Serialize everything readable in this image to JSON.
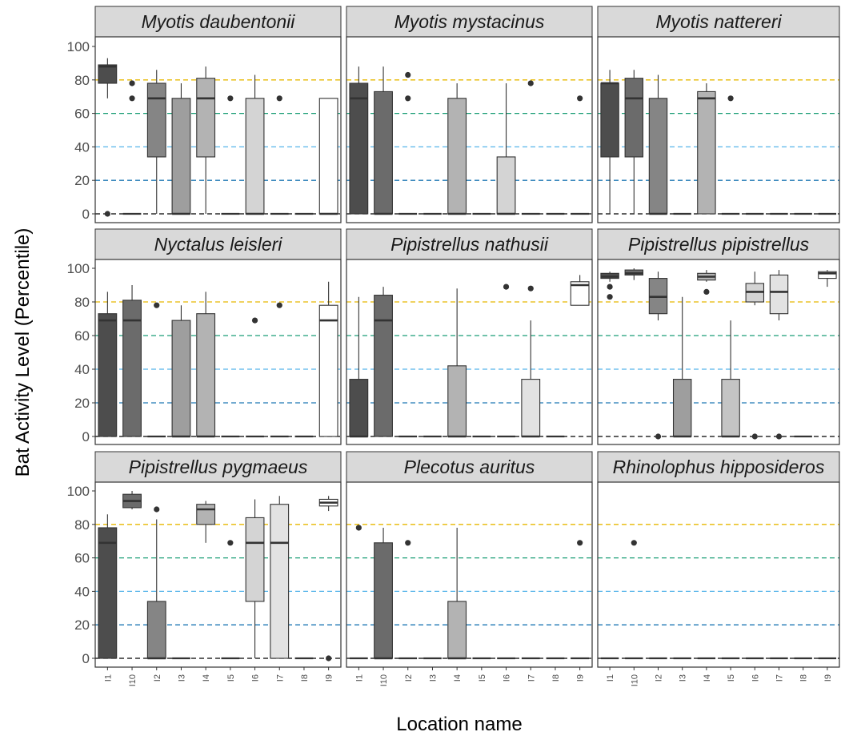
{
  "chart_data": {
    "type": "box",
    "facets_layout": "3x3 grid",
    "xlabel": "Location name",
    "ylabel": "Bat Activity Level (Percentile)",
    "ylim": [
      0,
      100
    ],
    "y_ticks": [
      0,
      20,
      40,
      60,
      80,
      100
    ],
    "categories": [
      "I1",
      "I10",
      "I2",
      "I3",
      "I4",
      "I5",
      "I6",
      "I7",
      "I8",
      "I9"
    ],
    "fill_colors": [
      "#4d4d4d",
      "#6b6b6b",
      "#858585",
      "#9e9e9e",
      "#b3b3b3",
      "#c4c4c4",
      "#d4d4d4",
      "#e2e2e2",
      "#efefef",
      "#ffffff"
    ],
    "reference_lines": [
      {
        "y": 80,
        "color": "#E7B800"
      },
      {
        "y": 60,
        "color": "#1B9E77"
      },
      {
        "y": 40,
        "color": "#56B4E9"
      },
      {
        "y": 20,
        "color": "#1F78B4"
      },
      {
        "y": 0,
        "color": "#000000"
      }
    ],
    "grid": false,
    "legend": "none",
    "facets": [
      {
        "title": "Myotis daubentonii",
        "boxes": [
          {
            "lw": 69,
            "q1": 78,
            "med": 88,
            "q3": 89,
            "uw": 93,
            "out": [
              0
            ]
          },
          {
            "lw": 0,
            "q1": 0,
            "med": 0,
            "q3": 0,
            "uw": 0,
            "out": [
              69,
              78
            ]
          },
          {
            "lw": 0,
            "q1": 34,
            "med": 69,
            "q3": 78,
            "uw": 86,
            "out": []
          },
          {
            "lw": 0,
            "q1": 0,
            "med": 0,
            "q3": 69,
            "uw": 78,
            "out": []
          },
          {
            "lw": 0,
            "q1": 34,
            "med": 69,
            "q3": 81,
            "uw": 88,
            "out": []
          },
          {
            "lw": 0,
            "q1": 0,
            "med": 0,
            "q3": 0,
            "uw": 0,
            "out": [
              69
            ]
          },
          {
            "lw": 0,
            "q1": 0,
            "med": 0,
            "q3": 69,
            "uw": 83,
            "out": []
          },
          {
            "lw": 0,
            "q1": 0,
            "med": 0,
            "q3": 0,
            "uw": 0,
            "out": [
              69
            ]
          },
          {
            "lw": 0,
            "q1": 0,
            "med": 0,
            "q3": 0,
            "uw": 0,
            "out": []
          },
          {
            "lw": 0,
            "q1": 0,
            "med": 0,
            "q3": 69,
            "uw": 69,
            "out": []
          }
        ]
      },
      {
        "title": "Myotis mystacinus",
        "boxes": [
          {
            "lw": 0,
            "q1": 0,
            "med": 69,
            "q3": 78,
            "uw": 88,
            "out": []
          },
          {
            "lw": 0,
            "q1": 0,
            "med": 0,
            "q3": 73,
            "uw": 88,
            "out": []
          },
          {
            "lw": 0,
            "q1": 0,
            "med": 0,
            "q3": 0,
            "uw": 0,
            "out": [
              69,
              83
            ]
          },
          {
            "lw": 0,
            "q1": 0,
            "med": 0,
            "q3": 0,
            "uw": 0,
            "out": []
          },
          {
            "lw": 0,
            "q1": 0,
            "med": 0,
            "q3": 69,
            "uw": 78,
            "out": []
          },
          {
            "lw": 0,
            "q1": 0,
            "med": 0,
            "q3": 0,
            "uw": 0,
            "out": []
          },
          {
            "lw": 0,
            "q1": 0,
            "med": 0,
            "q3": 34,
            "uw": 78,
            "out": []
          },
          {
            "lw": 0,
            "q1": 0,
            "med": 0,
            "q3": 0,
            "uw": 0,
            "out": [
              78
            ]
          },
          {
            "lw": 0,
            "q1": 0,
            "med": 0,
            "q3": 0,
            "uw": 0,
            "out": []
          },
          {
            "lw": 0,
            "q1": 0,
            "med": 0,
            "q3": 0,
            "uw": 0,
            "out": [
              69
            ]
          }
        ]
      },
      {
        "title": "Myotis nattereri",
        "boxes": [
          {
            "lw": 0,
            "q1": 34,
            "med": 78,
            "q3": 78,
            "uw": 86,
            "out": []
          },
          {
            "lw": 0,
            "q1": 34,
            "med": 69,
            "q3": 81,
            "uw": 86,
            "out": []
          },
          {
            "lw": 0,
            "q1": 0,
            "med": 0,
            "q3": 69,
            "uw": 83,
            "out": []
          },
          {
            "lw": 0,
            "q1": 0,
            "med": 0,
            "q3": 0,
            "uw": 0,
            "out": []
          },
          {
            "lw": 0,
            "q1": 0,
            "med": 69,
            "q3": 73,
            "uw": 78,
            "out": []
          },
          {
            "lw": 0,
            "q1": 0,
            "med": 0,
            "q3": 0,
            "uw": 0,
            "out": [
              69
            ]
          },
          {
            "lw": 0,
            "q1": 0,
            "med": 0,
            "q3": 0,
            "uw": 0,
            "out": []
          },
          {
            "lw": 0,
            "q1": 0,
            "med": 0,
            "q3": 0,
            "uw": 0,
            "out": []
          },
          {
            "lw": 0,
            "q1": 0,
            "med": 0,
            "q3": 0,
            "uw": 0,
            "out": []
          },
          {
            "lw": 0,
            "q1": 0,
            "med": 0,
            "q3": 0,
            "uw": 0,
            "out": []
          }
        ]
      },
      {
        "title": "Nyctalus leisleri",
        "boxes": [
          {
            "lw": 0,
            "q1": 0,
            "med": 69,
            "q3": 73,
            "uw": 86,
            "out": []
          },
          {
            "lw": 0,
            "q1": 0,
            "med": 69,
            "q3": 81,
            "uw": 90,
            "out": []
          },
          {
            "lw": 0,
            "q1": 0,
            "med": 0,
            "q3": 0,
            "uw": 0,
            "out": [
              78
            ]
          },
          {
            "lw": 0,
            "q1": 0,
            "med": 0,
            "q3": 69,
            "uw": 78,
            "out": []
          },
          {
            "lw": 0,
            "q1": 0,
            "med": 0,
            "q3": 73,
            "uw": 86,
            "out": []
          },
          {
            "lw": 0,
            "q1": 0,
            "med": 0,
            "q3": 0,
            "uw": 0,
            "out": []
          },
          {
            "lw": 0,
            "q1": 0,
            "med": 0,
            "q3": 0,
            "uw": 0,
            "out": [
              69
            ]
          },
          {
            "lw": 0,
            "q1": 0,
            "med": 0,
            "q3": 0,
            "uw": 0,
            "out": [
              78
            ]
          },
          {
            "lw": 0,
            "q1": 0,
            "med": 0,
            "q3": 0,
            "uw": 0,
            "out": []
          },
          {
            "lw": 0,
            "q1": 0,
            "med": 69,
            "q3": 78,
            "uw": 92,
            "out": []
          }
        ]
      },
      {
        "title": "Pipistrellus nathusii",
        "boxes": [
          {
            "lw": 0,
            "q1": 0,
            "med": 0,
            "q3": 34,
            "uw": 83,
            "out": []
          },
          {
            "lw": 0,
            "q1": 0,
            "med": 69,
            "q3": 84,
            "uw": 89,
            "out": []
          },
          {
            "lw": 0,
            "q1": 0,
            "med": 0,
            "q3": 0,
            "uw": 0,
            "out": []
          },
          {
            "lw": 0,
            "q1": 0,
            "med": 0,
            "q3": 0,
            "uw": 0,
            "out": []
          },
          {
            "lw": 0,
            "q1": 0,
            "med": 0,
            "q3": 42,
            "uw": 88,
            "out": []
          },
          {
            "lw": 0,
            "q1": 0,
            "med": 0,
            "q3": 0,
            "uw": 0,
            "out": []
          },
          {
            "lw": 0,
            "q1": 0,
            "med": 0,
            "q3": 0,
            "uw": 0,
            "out": [
              89
            ]
          },
          {
            "lw": 0,
            "q1": 0,
            "med": 0,
            "q3": 34,
            "uw": 69,
            "out": [
              88
            ]
          },
          {
            "lw": 0,
            "q1": 0,
            "med": 0,
            "q3": 0,
            "uw": 0,
            "out": []
          },
          {
            "lw": 78,
            "q1": 78,
            "med": 90,
            "q3": 92,
            "uw": 96,
            "out": []
          }
        ]
      },
      {
        "title": "Pipistrellus pipistrellus",
        "boxes": [
          {
            "lw": 92,
            "q1": 94,
            "med": 95,
            "q3": 97,
            "uw": 98,
            "out": [
              83,
              89
            ]
          },
          {
            "lw": 93,
            "q1": 96,
            "med": 97,
            "q3": 99,
            "uw": 100,
            "out": []
          },
          {
            "lw": 69,
            "q1": 73,
            "med": 83,
            "q3": 94,
            "uw": 98,
            "out": [
              0
            ]
          },
          {
            "lw": 0,
            "q1": 0,
            "med": 0,
            "q3": 34,
            "uw": 83,
            "out": []
          },
          {
            "lw": 92,
            "q1": 93,
            "med": 95,
            "q3": 97,
            "uw": 99,
            "out": [
              86
            ]
          },
          {
            "lw": 0,
            "q1": 0,
            "med": 0,
            "q3": 34,
            "uw": 69,
            "out": []
          },
          {
            "lw": 78,
            "q1": 80,
            "med": 86,
            "q3": 91,
            "uw": 98,
            "out": [
              0
            ]
          },
          {
            "lw": 69,
            "q1": 73,
            "med": 86,
            "q3": 96,
            "uw": 99,
            "out": [
              0
            ]
          },
          {
            "lw": 0,
            "q1": 0,
            "med": 0,
            "q3": 0,
            "uw": 0,
            "out": []
          },
          {
            "lw": 89,
            "q1": 94,
            "med": 97,
            "q3": 98,
            "uw": 99,
            "out": []
          }
        ]
      },
      {
        "title": "Pipistrellus pygmaeus",
        "boxes": [
          {
            "lw": 0,
            "q1": 0,
            "med": 69,
            "q3": 78,
            "uw": 86,
            "out": []
          },
          {
            "lw": 89,
            "q1": 90,
            "med": 94,
            "q3": 98,
            "uw": 100,
            "out": []
          },
          {
            "lw": 0,
            "q1": 0,
            "med": 0,
            "q3": 34,
            "uw": 83,
            "out": [
              89
            ]
          },
          {
            "lw": 0,
            "q1": 0,
            "med": 0,
            "q3": 0,
            "uw": 0,
            "out": []
          },
          {
            "lw": 69,
            "q1": 80,
            "med": 89,
            "q3": 92,
            "uw": 94,
            "out": []
          },
          {
            "lw": 0,
            "q1": 0,
            "med": 0,
            "q3": 0,
            "uw": 0,
            "out": [
              69
            ]
          },
          {
            "lw": 0,
            "q1": 34,
            "med": 69,
            "q3": 84,
            "uw": 95,
            "out": []
          },
          {
            "lw": 0,
            "q1": 0,
            "med": 69,
            "q3": 92,
            "uw": 97,
            "out": []
          },
          {
            "lw": 0,
            "q1": 0,
            "med": 0,
            "q3": 0,
            "uw": 0,
            "out": []
          },
          {
            "lw": 88,
            "q1": 91,
            "med": 93,
            "q3": 95,
            "uw": 97,
            "out": [
              0
            ]
          }
        ]
      },
      {
        "title": "Plecotus auritus",
        "boxes": [
          {
            "lw": 0,
            "q1": 0,
            "med": 0,
            "q3": 0,
            "uw": 0,
            "out": [
              78
            ]
          },
          {
            "lw": 0,
            "q1": 0,
            "med": 0,
            "q3": 69,
            "uw": 78,
            "out": []
          },
          {
            "lw": 0,
            "q1": 0,
            "med": 0,
            "q3": 0,
            "uw": 0,
            "out": [
              69
            ]
          },
          {
            "lw": 0,
            "q1": 0,
            "med": 0,
            "q3": 0,
            "uw": 0,
            "out": []
          },
          {
            "lw": 0,
            "q1": 0,
            "med": 0,
            "q3": 34,
            "uw": 78,
            "out": []
          },
          {
            "lw": 0,
            "q1": 0,
            "med": 0,
            "q3": 0,
            "uw": 0,
            "out": []
          },
          {
            "lw": 0,
            "q1": 0,
            "med": 0,
            "q3": 0,
            "uw": 0,
            "out": []
          },
          {
            "lw": 0,
            "q1": 0,
            "med": 0,
            "q3": 0,
            "uw": 0,
            "out": []
          },
          {
            "lw": 0,
            "q1": 0,
            "med": 0,
            "q3": 0,
            "uw": 0,
            "out": []
          },
          {
            "lw": 0,
            "q1": 0,
            "med": 0,
            "q3": 0,
            "uw": 0,
            "out": [
              69
            ]
          }
        ]
      },
      {
        "title": "Rhinolophus hipposideros",
        "boxes": [
          {
            "lw": 0,
            "q1": 0,
            "med": 0,
            "q3": 0,
            "uw": 0,
            "out": []
          },
          {
            "lw": 0,
            "q1": 0,
            "med": 0,
            "q3": 0,
            "uw": 0,
            "out": [
              69
            ]
          },
          {
            "lw": 0,
            "q1": 0,
            "med": 0,
            "q3": 0,
            "uw": 0,
            "out": []
          },
          {
            "lw": 0,
            "q1": 0,
            "med": 0,
            "q3": 0,
            "uw": 0,
            "out": []
          },
          {
            "lw": 0,
            "q1": 0,
            "med": 0,
            "q3": 0,
            "uw": 0,
            "out": []
          },
          {
            "lw": 0,
            "q1": 0,
            "med": 0,
            "q3": 0,
            "uw": 0,
            "out": []
          },
          {
            "lw": 0,
            "q1": 0,
            "med": 0,
            "q3": 0,
            "uw": 0,
            "out": []
          },
          {
            "lw": 0,
            "q1": 0,
            "med": 0,
            "q3": 0,
            "uw": 0,
            "out": []
          },
          {
            "lw": 0,
            "q1": 0,
            "med": 0,
            "q3": 0,
            "uw": 0,
            "out": []
          },
          {
            "lw": 0,
            "q1": 0,
            "med": 0,
            "q3": 0,
            "uw": 0,
            "out": []
          }
        ]
      }
    ]
  }
}
